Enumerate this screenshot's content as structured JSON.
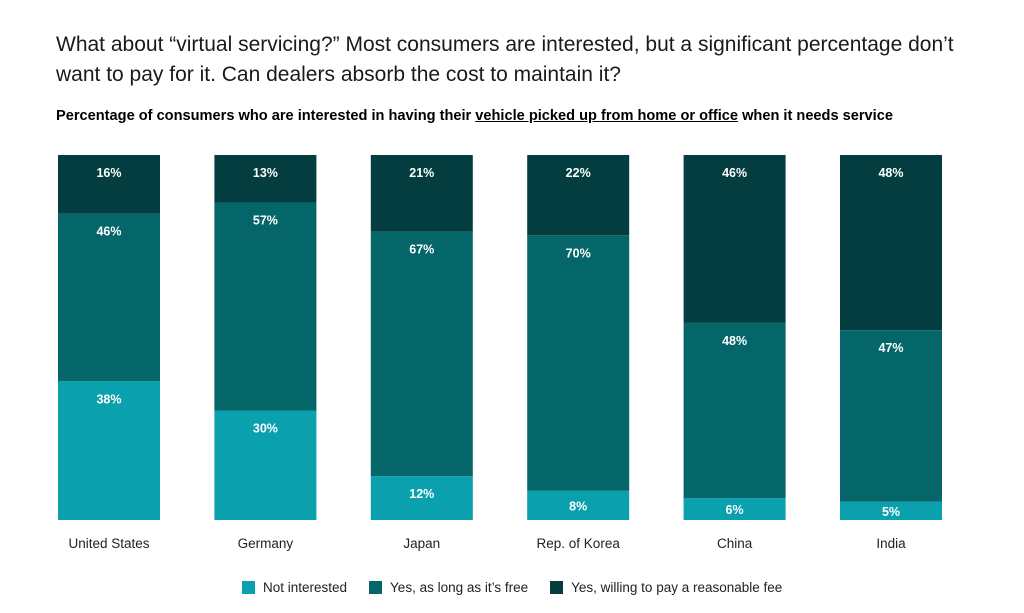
{
  "headline": "What about “virtual servicing?” Most consumers are interested, but a significant percentage don’t want to pay for it. Can dealers absorb the cost to maintain it?",
  "subtitle": {
    "before": "Percentage of consumers who are interested in having their ",
    "underlined": "vehicle picked up from home or office",
    "after": " when it needs service"
  },
  "chart_data": {
    "type": "bar",
    "stacked": true,
    "title": "Percentage of consumers who are interested in having their vehicle picked up from home or office when it needs service",
    "categories": [
      "United States",
      "Germany",
      "Japan",
      "Rep. of Korea",
      "China",
      "India"
    ],
    "series": [
      {
        "name": "Not interested",
        "color": "#0aa0ad",
        "values": [
          38,
          30,
          12,
          8,
          6,
          5
        ]
      },
      {
        "name": "Yes, as long as it’s free",
        "color": "#05666a",
        "values": [
          46,
          57,
          67,
          70,
          48,
          47
        ]
      },
      {
        "name": "Yes, willing to pay a reasonable fee",
        "color": "#033d3f",
        "values": [
          16,
          13,
          21,
          22,
          46,
          48
        ]
      }
    ],
    "unit": "%",
    "label_color": "#ffffff",
    "legend_position": "bottom",
    "grid": false
  }
}
